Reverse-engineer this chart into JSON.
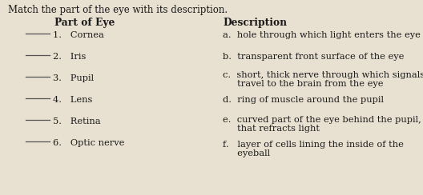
{
  "title": "Match the part of the eye with its description.",
  "bg_color": "#e8e0d0",
  "text_color": "#1a1a1a",
  "header_left": "Part of Eye",
  "header_right": "Description",
  "parts": [
    "1.   Cornea",
    "2.   Iris",
    "3.   Pupil",
    "4.   Lens",
    "5.   Retina",
    "6.   Optic nerve"
  ],
  "desc_a": [
    "a.  hole through which light enters the eye"
  ],
  "desc_b": [
    "b.  transparent front surface of the eye"
  ],
  "desc_c_1": "c.  short, thick nerve through which signals",
  "desc_c_2": "     travel to the brain from the eye",
  "desc_d": [
    "d.  ring of muscle around the pupil"
  ],
  "desc_e_1": "e.  curved part of the eye behind the pupil,",
  "desc_e_2": "     that refracts light",
  "desc_f_1": "f.   layer of cells lining the inside of the",
  "desc_f_2": "     eyeball",
  "line_color": "#555555",
  "font_family": "serif",
  "title_fontsize": 8.5,
  "body_fontsize": 8.2,
  "header_fontsize": 8.8
}
